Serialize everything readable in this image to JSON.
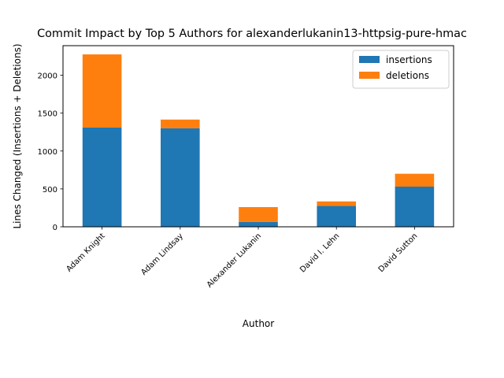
{
  "chart_data": {
    "type": "bar",
    "stacked": true,
    "title": "Commit Impact by Top 5 Authors for alexanderlukanin13-httpsig-pure-hmac",
    "xlabel": "Author",
    "ylabel": "Lines Changed (Insertions + Deletions)",
    "categories": [
      "Adam Knight",
      "Adam Lindsay",
      "Alexander Lukanin",
      "David I. Lehn",
      "David Sutton"
    ],
    "series": [
      {
        "name": "insertions",
        "color": "#1f77b4",
        "values": [
          1310,
          1300,
          65,
          275,
          530
        ]
      },
      {
        "name": "deletions",
        "color": "#ff7f0e",
        "values": [
          965,
          115,
          195,
          60,
          170
        ]
      }
    ],
    "ylim": [
      0,
      2390
    ],
    "yticks": [
      0,
      500,
      1000,
      1500,
      2000
    ],
    "grid": false,
    "legend": "top-right"
  }
}
